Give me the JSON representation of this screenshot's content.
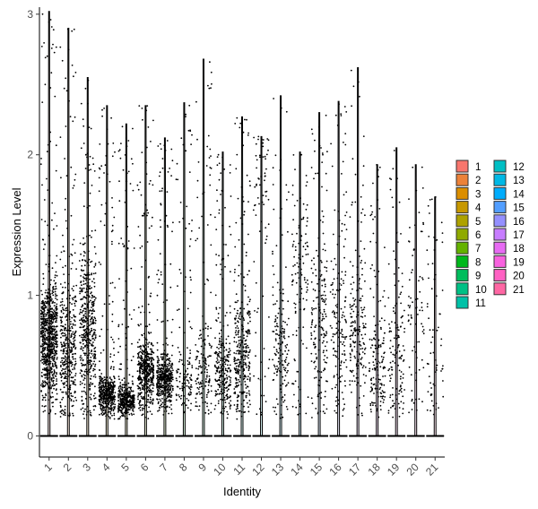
{
  "chart_data": {
    "type": "scatter",
    "subtype": "violin-jitter",
    "xlabel": "Identity",
    "ylabel": "Expression Level",
    "categories": [
      "1",
      "2",
      "3",
      "4",
      "5",
      "6",
      "7",
      "8",
      "9",
      "10",
      "11",
      "12",
      "13",
      "14",
      "15",
      "16",
      "17",
      "18",
      "19",
      "20",
      "21"
    ],
    "ylim": [
      -0.15,
      3.05
    ],
    "yticks": [
      0,
      1,
      2,
      3
    ],
    "x_tick_rotation": -45,
    "grid": false,
    "legend": {
      "position": "right",
      "columns": 2,
      "entries": [
        "1",
        "2",
        "3",
        "4",
        "5",
        "6",
        "7",
        "8",
        "9",
        "10",
        "11",
        "12",
        "13",
        "14",
        "15",
        "16",
        "17",
        "18",
        "19",
        "20",
        "21"
      ]
    },
    "point_color": "#000000",
    "series": [
      {
        "name": "1",
        "color": "#F8766D",
        "max": 3.02,
        "dense_center": 0.7,
        "dense_spread": 0.35,
        "density": 1.0
      },
      {
        "name": "2",
        "color": "#EC8239",
        "max": 2.9,
        "dense_center": 0.6,
        "dense_spread": 0.4,
        "density": 0.45
      },
      {
        "name": "3",
        "color": "#DB8E00",
        "max": 2.55,
        "dense_center": 0.75,
        "dense_spread": 0.5,
        "density": 0.55
      },
      {
        "name": "4",
        "color": "#C79800",
        "max": 2.35,
        "dense_center": 0.3,
        "dense_spread": 0.12,
        "density": 0.55
      },
      {
        "name": "5",
        "color": "#AEA200",
        "max": 2.22,
        "dense_center": 0.25,
        "dense_spread": 0.1,
        "density": 0.45
      },
      {
        "name": "6",
        "color": "#8FAA00",
        "max": 2.35,
        "dense_center": 0.45,
        "dense_spread": 0.2,
        "density": 0.6
      },
      {
        "name": "7",
        "color": "#64B200",
        "max": 2.12,
        "dense_center": 0.4,
        "dense_spread": 0.15,
        "density": 0.55
      },
      {
        "name": "8",
        "color": "#00B81B",
        "max": 2.37,
        "dense_center": 0.4,
        "dense_spread": 0.2,
        "density": 0.12
      },
      {
        "name": "9",
        "color": "#00BD5C",
        "max": 2.68,
        "dense_center": 0.45,
        "dense_spread": 0.25,
        "density": 0.15
      },
      {
        "name": "10",
        "color": "#00C085",
        "max": 2.02,
        "dense_center": 0.45,
        "dense_spread": 0.3,
        "density": 0.28
      },
      {
        "name": "11",
        "color": "#00C1A7",
        "max": 2.27,
        "dense_center": 0.55,
        "dense_spread": 0.35,
        "density": 0.35
      },
      {
        "name": "12",
        "color": "#00BFC4",
        "max": 2.13,
        "dense_center": 1.9,
        "dense_spread": 0.25,
        "density": 0.05
      },
      {
        "name": "13",
        "color": "#00B8E5",
        "max": 2.42,
        "dense_center": 0.6,
        "dense_spread": 0.3,
        "density": 0.15
      },
      {
        "name": "14",
        "color": "#00ACFC",
        "max": 2.02,
        "dense_center": 1.2,
        "dense_spread": 0.5,
        "density": 0.1
      },
      {
        "name": "15",
        "color": "#529EFF",
        "max": 2.3,
        "dense_center": 0.8,
        "dense_spread": 0.5,
        "density": 0.18
      },
      {
        "name": "16",
        "color": "#9590FF",
        "max": 2.38,
        "dense_center": 0.8,
        "dense_spread": 0.55,
        "density": 0.15
      },
      {
        "name": "17",
        "color": "#C77CFF",
        "max": 2.62,
        "dense_center": 0.7,
        "dense_spread": 0.4,
        "density": 0.18
      },
      {
        "name": "18",
        "color": "#E76BF3",
        "max": 1.93,
        "dense_center": 0.5,
        "dense_spread": 0.3,
        "density": 0.15
      },
      {
        "name": "19",
        "color": "#F862DF",
        "max": 2.05,
        "dense_center": 0.55,
        "dense_spread": 0.35,
        "density": 0.12
      },
      {
        "name": "20",
        "color": "#FF61C3",
        "max": 1.93,
        "dense_center": 0.9,
        "dense_spread": 0.5,
        "density": 0.05
      },
      {
        "name": "21",
        "color": "#FF67A4",
        "max": 1.7,
        "dense_center": 0.7,
        "dense_spread": 0.5,
        "density": 0.04
      }
    ]
  }
}
